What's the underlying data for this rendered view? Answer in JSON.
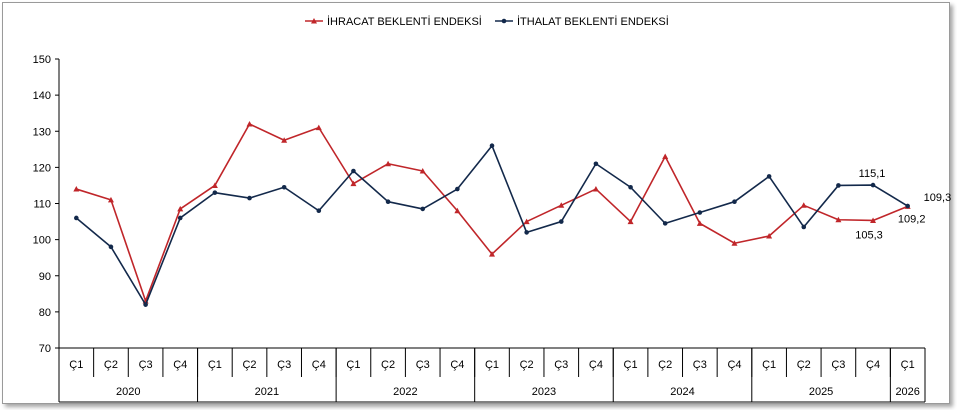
{
  "chart_data": {
    "type": "line",
    "categories": [
      "Ç1",
      "Ç2",
      "Ç3",
      "Ç4",
      "Ç1",
      "Ç2",
      "Ç3",
      "Ç4",
      "Ç1",
      "Ç2",
      "Ç3",
      "Ç4",
      "Ç1",
      "Ç2",
      "Ç3",
      "Ç4",
      "Ç1",
      "Ç2",
      "Ç3",
      "Ç4",
      "Ç1",
      "Ç2",
      "Ç3",
      "Ç4",
      "Ç1"
    ],
    "years": [
      {
        "label": "2020",
        "start": 0,
        "count": 4
      },
      {
        "label": "2021",
        "start": 4,
        "count": 4
      },
      {
        "label": "2022",
        "start": 8,
        "count": 4
      },
      {
        "label": "2023",
        "start": 12,
        "count": 4
      },
      {
        "label": "2024",
        "start": 16,
        "count": 4
      },
      {
        "label": "2025",
        "start": 20,
        "count": 4
      },
      {
        "label": "2026",
        "start": 24,
        "count": 1
      }
    ],
    "series": [
      {
        "name": "İHRACAT BEKLENTİ ENDEKSİ",
        "color": "#c0262a",
        "marker": "triangle",
        "values": [
          114,
          111,
          83,
          108.5,
          115,
          132,
          127.5,
          131,
          115.5,
          121,
          119,
          108,
          96,
          105,
          109.5,
          114,
          105,
          123,
          104.5,
          99,
          101,
          109.5,
          105.5,
          105.3,
          109.2
        ]
      },
      {
        "name": "İTHALAT BEKLENTİ ENDEKSİ",
        "color": "#13294b",
        "marker": "circle",
        "values": [
          106,
          98,
          82,
          106,
          113,
          111.5,
          114.5,
          108,
          119,
          110.5,
          108.5,
          114,
          126,
          102,
          105,
          121,
          114.5,
          104.5,
          107.5,
          110.5,
          117.5,
          103.5,
          115,
          115.1,
          109.3
        ]
      }
    ],
    "annotations": [
      {
        "series": 0,
        "index": 23,
        "text": "105,3"
      },
      {
        "series": 1,
        "index": 23,
        "text": "115,1"
      },
      {
        "series": 1,
        "index": 24,
        "text": "109,3"
      },
      {
        "series": 0,
        "index": 24,
        "text": "109,2"
      }
    ],
    "ylim": [
      70,
      150
    ],
    "yticks": [
      70,
      80,
      90,
      100,
      110,
      120,
      130,
      140,
      150
    ],
    "grid": false,
    "legend_position": "top"
  }
}
